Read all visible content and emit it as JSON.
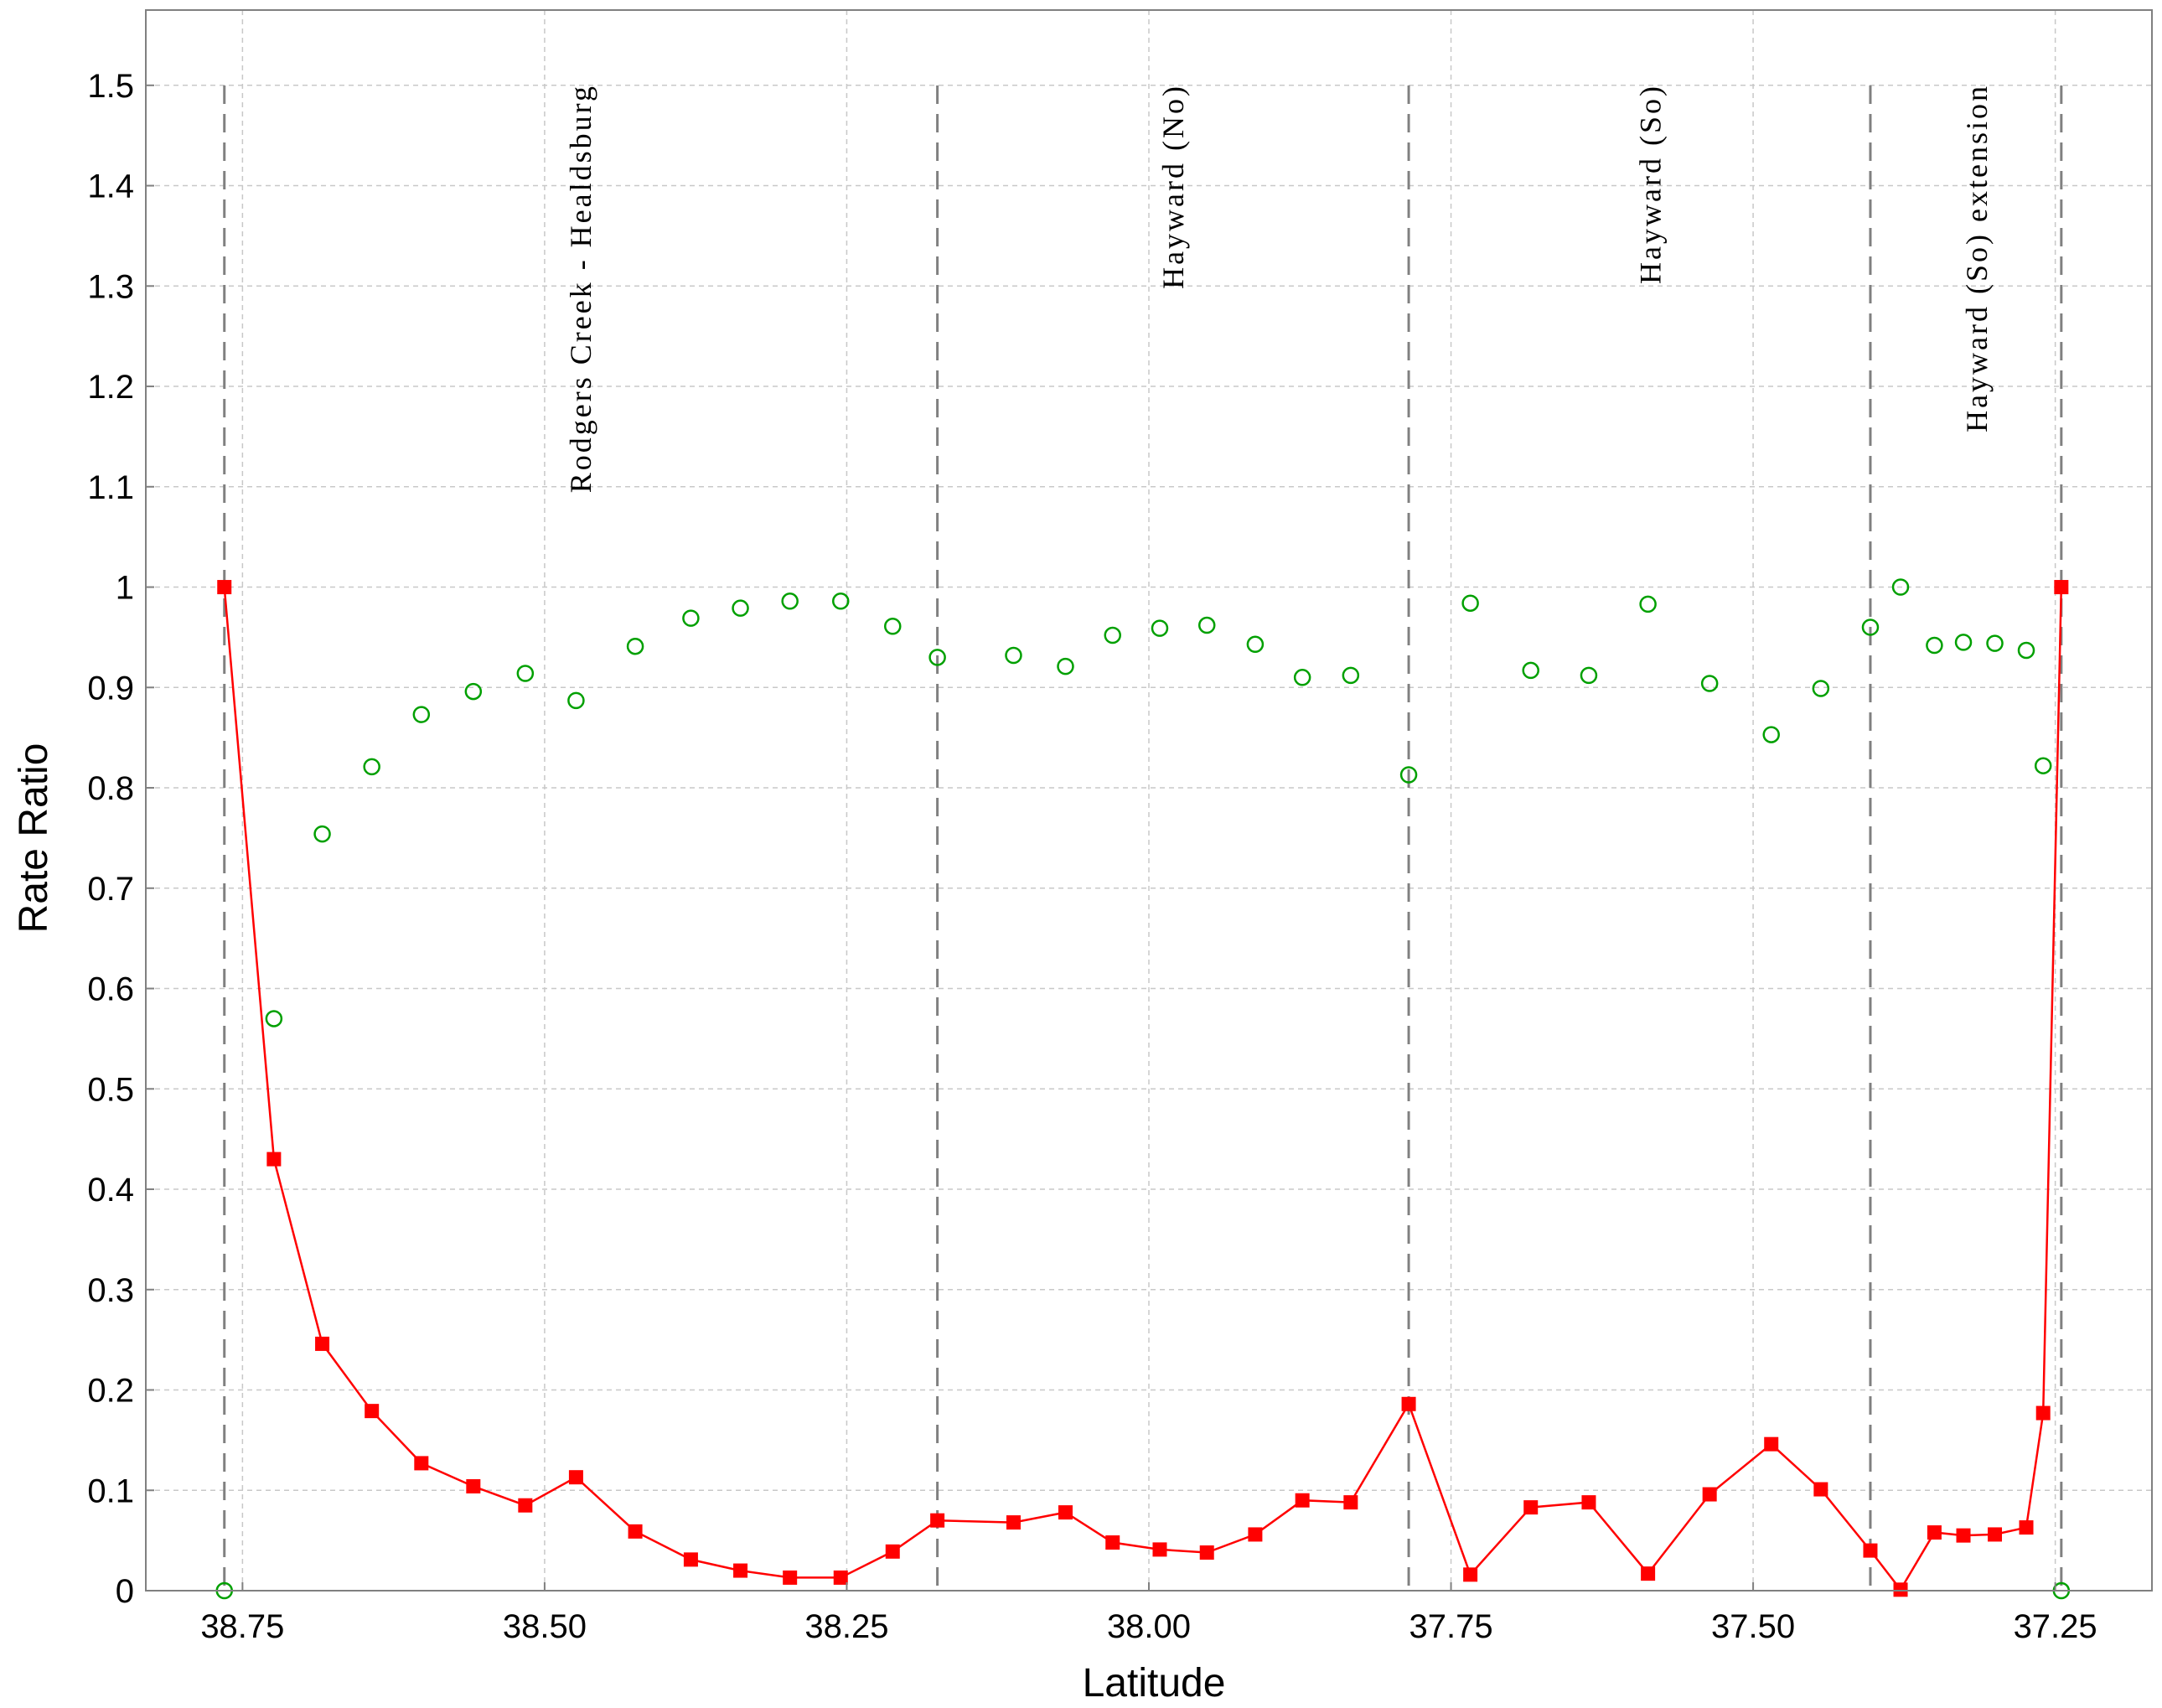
{
  "chart_data": {
    "type": "scatter",
    "xlabel": "Latitude",
    "ylabel": "Rate Ratio",
    "xlim": [
      38.83,
      37.17
    ],
    "ylim": [
      0,
      1.575
    ],
    "x_ticks": [
      38.75,
      38.5,
      38.25,
      38.0,
      37.75,
      37.5,
      37.25
    ],
    "x_tick_labels": [
      "38.75",
      "38.50",
      "38.25",
      "38.00",
      "37.75",
      "37.50",
      "37.25"
    ],
    "y_ticks": [
      0,
      0.1,
      0.2,
      0.3,
      0.4,
      0.5,
      0.6,
      0.7,
      0.8,
      0.9,
      1,
      1.1,
      1.2,
      1.3,
      1.4,
      1.5
    ],
    "y_tick_labels": [
      "0",
      "0.1",
      "0.2",
      "0.3",
      "0.4",
      "0.5",
      "0.6",
      "0.7",
      "0.8",
      "0.9",
      "1",
      "1.1",
      "1.2",
      "1.3",
      "1.4",
      "1.5"
    ],
    "grid": true,
    "segment_boundaries": [
      38.765,
      38.175,
      37.785,
      37.403,
      37.245
    ],
    "segment_labels": [
      {
        "text": "Rodgers Creek - Healdsburg",
        "x": 38.47
      },
      {
        "text": "Hayward (No)",
        "x": 37.98
      },
      {
        "text": "Hayward (So)",
        "x": 37.585
      },
      {
        "text": "Hayward (So) extension",
        "x": 37.315
      }
    ],
    "series": [
      {
        "color": "#ff0000",
        "marker": "filled-square",
        "line": true,
        "points": [
          [
            38.765,
            1.0
          ],
          [
            38.724,
            0.43
          ],
          [
            38.684,
            0.246
          ],
          [
            38.643,
            0.179
          ],
          [
            38.602,
            0.127
          ],
          [
            38.559,
            0.104
          ],
          [
            38.516,
            0.085
          ],
          [
            38.474,
            0.113
          ],
          [
            38.425,
            0.059
          ],
          [
            38.379,
            0.031
          ],
          [
            38.338,
            0.02
          ],
          [
            38.297,
            0.013
          ],
          [
            38.255,
            0.013
          ],
          [
            38.212,
            0.039
          ],
          [
            38.175,
            0.07
          ],
          [
            38.112,
            0.068
          ],
          [
            38.069,
            0.078
          ],
          [
            38.03,
            0.048
          ],
          [
            37.991,
            0.041
          ],
          [
            37.952,
            0.038
          ],
          [
            37.912,
            0.056
          ],
          [
            37.873,
            0.09
          ],
          [
            37.833,
            0.088
          ],
          [
            37.785,
            0.186
          ],
          [
            37.734,
            0.016
          ],
          [
            37.684,
            0.083
          ],
          [
            37.636,
            0.088
          ],
          [
            37.587,
            0.017
          ],
          [
            37.536,
            0.096
          ],
          [
            37.485,
            0.146
          ],
          [
            37.444,
            0.101
          ],
          [
            37.403,
            0.04
          ],
          [
            37.378,
            0.001
          ],
          [
            37.35,
            0.058
          ],
          [
            37.326,
            0.055
          ],
          [
            37.3,
            0.056
          ],
          [
            37.274,
            0.063
          ],
          [
            37.26,
            0.177
          ],
          [
            37.245,
            1.0
          ]
        ]
      },
      {
        "color": "#00a000",
        "marker": "open-circle",
        "line": false,
        "points": [
          [
            38.765,
            0.0
          ],
          [
            38.724,
            0.57
          ],
          [
            38.684,
            0.754
          ],
          [
            38.643,
            0.821
          ],
          [
            38.602,
            0.873
          ],
          [
            38.559,
            0.896
          ],
          [
            38.516,
            0.914
          ],
          [
            38.474,
            0.887
          ],
          [
            38.425,
            0.941
          ],
          [
            38.379,
            0.969
          ],
          [
            38.338,
            0.979
          ],
          [
            38.297,
            0.986
          ],
          [
            38.255,
            0.986
          ],
          [
            38.212,
            0.961
          ],
          [
            38.175,
            0.93
          ],
          [
            38.112,
            0.932
          ],
          [
            38.069,
            0.921
          ],
          [
            38.03,
            0.952
          ],
          [
            37.991,
            0.959
          ],
          [
            37.952,
            0.962
          ],
          [
            37.912,
            0.943
          ],
          [
            37.873,
            0.91
          ],
          [
            37.833,
            0.912
          ],
          [
            37.785,
            0.813
          ],
          [
            37.734,
            0.984
          ],
          [
            37.684,
            0.917
          ],
          [
            37.636,
            0.912
          ],
          [
            37.587,
            0.983
          ],
          [
            37.536,
            0.904
          ],
          [
            37.485,
            0.853
          ],
          [
            37.444,
            0.899
          ],
          [
            37.403,
            0.96
          ],
          [
            37.378,
            1.0
          ],
          [
            37.35,
            0.942
          ],
          [
            37.326,
            0.945
          ],
          [
            37.3,
            0.944
          ],
          [
            37.274,
            0.937
          ],
          [
            37.26,
            0.822
          ],
          [
            37.245,
            0.0
          ]
        ]
      }
    ]
  }
}
